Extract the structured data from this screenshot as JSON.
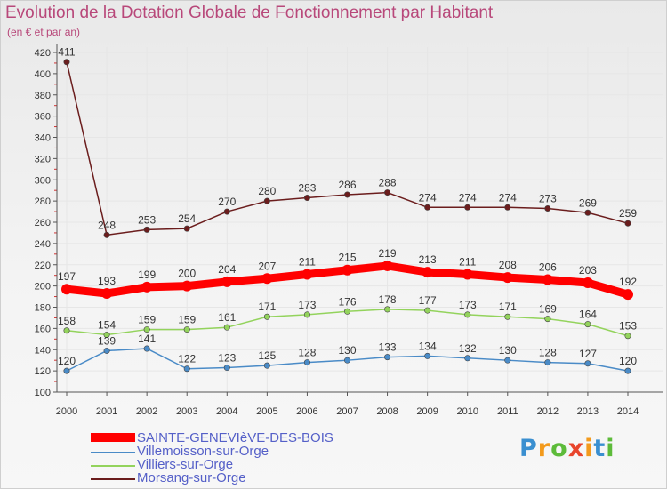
{
  "header": {
    "title": "Evolution de la Dotation Globale de Fonctionnement par Habitant",
    "subtitle": "(en € et par an)"
  },
  "logo": {
    "text": "Proxiti"
  },
  "colors": {
    "sainte": "#ff0000",
    "villemoisson": "#4a8bc7",
    "villiers": "#93d35c",
    "morsang": "#6b1d1d",
    "axis": "#555555",
    "grid": "#e6e6e6",
    "tick_accent": "#d23030"
  },
  "chart_data": {
    "type": "line",
    "title": "Evolution de la Dotation Globale de Fonctionnement par Habitant",
    "subtitle": "(en € et par an)",
    "xlabel": "",
    "ylabel": "",
    "ylim": [
      100,
      420
    ],
    "yticks": [
      100,
      120,
      140,
      160,
      180,
      200,
      220,
      240,
      260,
      280,
      300,
      320,
      340,
      360,
      380,
      400,
      420
    ],
    "grid": true,
    "legend_position": "bottom-left",
    "categories": [
      "2000",
      "2001",
      "2002",
      "2003",
      "2004",
      "2005",
      "2006",
      "2007",
      "2008",
      "2009",
      "2010",
      "2011",
      "2012",
      "2013",
      "2014"
    ],
    "series": [
      {
        "key": "sainte",
        "name": "SAINTE-GENEVIèVE-DES-BOIS",
        "values": [
          197,
          193,
          199,
          200,
          204,
          207,
          211,
          215,
          219,
          213,
          211,
          208,
          206,
          203,
          192
        ]
      },
      {
        "key": "villemoisson",
        "name": "Villemoisson-sur-Orge",
        "values": [
          120,
          139,
          141,
          122,
          123,
          125,
          128,
          130,
          133,
          134,
          132,
          130,
          128,
          127,
          120
        ]
      },
      {
        "key": "villiers",
        "name": "Villiers-sur-Orge",
        "values": [
          158,
          154,
          159,
          159,
          161,
          171,
          173,
          176,
          178,
          177,
          173,
          171,
          169,
          164,
          153
        ]
      },
      {
        "key": "morsang",
        "name": "Morsang-sur-Orge",
        "values": [
          411,
          248,
          253,
          254,
          270,
          280,
          283,
          286,
          288,
          274,
          274,
          274,
          273,
          269,
          259
        ]
      }
    ]
  }
}
